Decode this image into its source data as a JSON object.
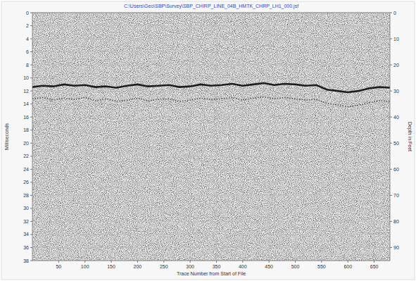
{
  "chart_data": {
    "type": "line",
    "title": "C:\\Users\\Geo\\SBP\\Survey\\SBP_CHIRP_LINE_04B_HMTK_CHRP_LH1_000.jsf",
    "x_label": "Trace Number from Start of File",
    "y_label": "Milliseconds",
    "y2_label": "Depth in Feet",
    "xlim": [
      0,
      680
    ],
    "xticks": [
      50,
      100,
      150,
      200,
      250,
      300,
      350,
      400,
      450,
      500,
      550,
      600,
      650
    ],
    "ylim": [
      38,
      0
    ],
    "yticks": [
      0,
      2,
      4,
      6,
      8,
      10,
      12,
      14,
      16,
      18,
      20,
      22,
      24,
      26,
      28,
      30,
      32,
      34,
      36,
      38
    ],
    "y2lim": [
      95,
      0
    ],
    "y2ticks": [
      0,
      10,
      20,
      30,
      40,
      50,
      60,
      70,
      80,
      90
    ],
    "grid": true,
    "x": [
      0,
      20,
      40,
      60,
      80,
      100,
      120,
      140,
      160,
      180,
      200,
      220,
      240,
      260,
      280,
      300,
      320,
      340,
      360,
      380,
      400,
      420,
      440,
      460,
      480,
      500,
      520,
      540,
      560,
      580,
      600,
      620,
      640,
      660,
      680
    ],
    "series": [
      {
        "color": "#1e1e1e",
        "line_style": "solid",
        "values": [
          11.4,
          11.2,
          11.3,
          11.0,
          11.2,
          11.1,
          11.4,
          11.3,
          11.5,
          11.2,
          11.0,
          11.3,
          11.2,
          11.1,
          11.4,
          11.3,
          11.0,
          11.2,
          11.1,
          10.9,
          11.2,
          11.0,
          10.8,
          11.1,
          10.9,
          11.0,
          11.2,
          11.1,
          11.8,
          12.0,
          12.2,
          12.0,
          11.6,
          11.4,
          11.5
        ]
      },
      {
        "color": "#555555",
        "line_style": "dotted",
        "values": [
          13.2,
          13.0,
          13.4,
          13.1,
          13.3,
          13.0,
          13.5,
          13.2,
          13.6,
          13.4,
          13.1,
          13.5,
          13.3,
          13.2,
          13.6,
          13.4,
          13.1,
          13.3,
          13.2,
          13.0,
          13.4,
          13.1,
          12.9,
          13.2,
          13.0,
          13.2,
          13.4,
          13.3,
          13.9,
          14.1,
          14.4,
          14.2,
          13.8,
          13.5,
          13.6
        ]
      }
    ]
  }
}
